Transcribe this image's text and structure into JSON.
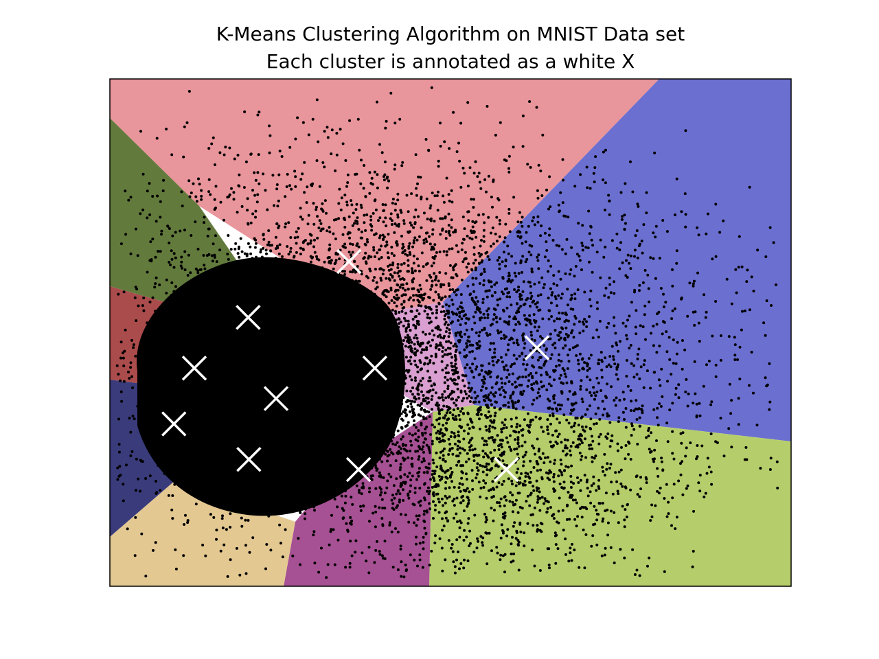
{
  "chart_data": {
    "type": "scatter",
    "title": "K-Means Clustering Algorithm on MNIST Data set",
    "subtitle": "Each cluster is annotated as a white X",
    "xlabel": "",
    "ylabel": "",
    "xlim": [
      0,
      100
    ],
    "ylim": [
      0,
      100
    ],
    "grid": false,
    "axes_ticks": false,
    "point_color": "#000000",
    "centroid_color": "#ffffff",
    "centroid_marker": "x",
    "centroids": [
      {
        "x": 9.4,
        "y": 32.0
      },
      {
        "x": 12.4,
        "y": 43.0
      },
      {
        "x": 20.3,
        "y": 53.0
      },
      {
        "x": 20.4,
        "y": 25.0
      },
      {
        "x": 24.4,
        "y": 37.0
      },
      {
        "x": 35.1,
        "y": 64.0
      },
      {
        "x": 36.5,
        "y": 23.0
      },
      {
        "x": 38.9,
        "y": 43.0
      },
      {
        "x": 62.7,
        "y": 47.0
      },
      {
        "x": 58.2,
        "y": 23.0
      }
    ],
    "region_colors": {
      "pink": "#e8959b",
      "blue": "#6b6fd0",
      "green": "#b5ce6b",
      "magenta": "#a65193",
      "tan": "#e4c892",
      "navy": "#3a3b7b",
      "red": "#aa4b4c",
      "olive": "#627a3c",
      "lightpink": "#d99fd0",
      "darkgreen": "#556b2f"
    }
  }
}
